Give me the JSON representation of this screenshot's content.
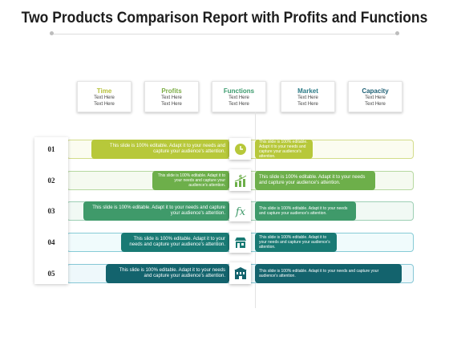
{
  "title": "Two Products Comparison Report with Profits and Functions",
  "colors": {
    "lime": "#b7c83a",
    "green": "#6daf4a",
    "mid_green": "#3f9a6a",
    "teal": "#197a74",
    "dark_teal": "#13636d",
    "card_title_time": "#b7c13a",
    "card_title_profits": "#7cad45",
    "card_title_functions": "#3a9a6c",
    "card_title_market": "#2a7a86",
    "card_title_capacity": "#1d5f74"
  },
  "columns": [
    {
      "title": "Time",
      "line1": "Text Here",
      "line2": "Text Here"
    },
    {
      "title": "Profits",
      "line1": "Text Here",
      "line2": "Text Here"
    },
    {
      "title": "Functions",
      "line1": "Text Here",
      "line2": "Text Here"
    },
    {
      "title": "Market",
      "line1": "Text Here",
      "line2": "Text Here"
    },
    {
      "title": "Capacity",
      "line1": "Text Here",
      "line2": "Text Here"
    }
  ],
  "rows": [
    {
      "number": "01",
      "icon": "clock-icon",
      "left_text": "This slide is 100% editable. Adapt it to your needs and capture your audience's attention.",
      "right_text": "This slide is 100% editable. Adapt it to your needs and capture your audience's attention."
    },
    {
      "number": "02",
      "icon": "dollar-chart-icon",
      "left_text": "This slide is 100% editable. Adapt it to your needs and capture your audience's attention.",
      "right_text": "This slide is 100% editable. Adapt it to your needs and capture your audience's attention."
    },
    {
      "number": "03",
      "icon": "function-icon",
      "left_text": "This slide is 100% editable. Adapt it to your needs and capture your audience's attention.",
      "right_text": "This slide is 100% editable. Adapt it to your needs and capture your audience's attention."
    },
    {
      "number": "04",
      "icon": "store-icon",
      "left_text": "This slide is 100% editable. Adapt it to your needs and capture your audience's attention.",
      "right_text": "This slide is 100% editable. Adapt it to your needs and capture your audience's attention."
    },
    {
      "number": "05",
      "icon": "building-icon",
      "left_text": "This slide is 100% editable. Adapt it to your needs and capture your audience's attention.",
      "right_text": "This slide is 100% editable. Adapt it to your needs and capture your audience's attention."
    }
  ]
}
